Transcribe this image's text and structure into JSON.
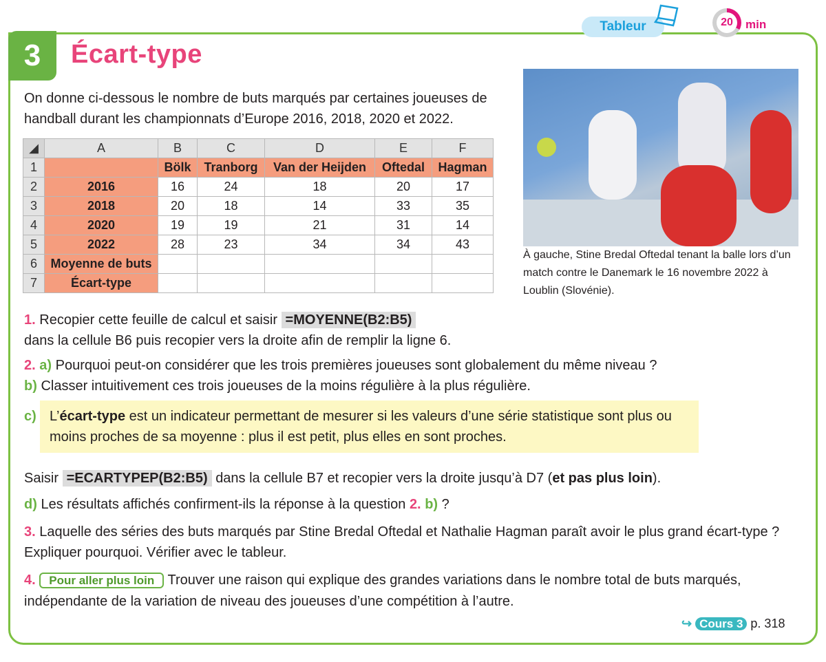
{
  "header": {
    "number": "3",
    "title": "Écart-type",
    "tag": "Tableur",
    "time": "20",
    "time_unit": "min"
  },
  "intro": "On donne ci-dessous le nombre de buts marqués par certaines joueuses de handball durant les championnats d’Europe 2016, 2018, 2020 et 2022.",
  "table": {
    "columns": [
      "A",
      "B",
      "C",
      "D",
      "E",
      "F"
    ],
    "rows": [
      [
        "1",
        "",
        "Bölk",
        "Tranborg",
        "Van der Heijden",
        "Oftedal",
        "Hagman"
      ],
      [
        "2",
        "2016",
        "16",
        "24",
        "18",
        "20",
        "17"
      ],
      [
        "3",
        "2018",
        "20",
        "18",
        "14",
        "33",
        "35"
      ],
      [
        "4",
        "2020",
        "19",
        "19",
        "21",
        "31",
        "14"
      ],
      [
        "5",
        "2022",
        "28",
        "23",
        "34",
        "34",
        "43"
      ],
      [
        "6",
        "Moyenne de buts",
        "",
        "",
        "",
        "",
        ""
      ],
      [
        "7",
        "Écart-type",
        "",
        "",
        "",
        "",
        ""
      ]
    ]
  },
  "photo_caption": "À gauche, Stine Bredal Oftedal tenant la balle lors d’un match contre le Danemark le 16 novembre 2022 à Loublin (Slovénie).",
  "q1": {
    "n": "1.",
    "a": "Recopier cette feuille de calcul et saisir",
    "code": "=MOYENNE(B2:B5)",
    "b": "dans la cellule B6 puis recopier vers la droite afin de remplir la ligne 6."
  },
  "q2": {
    "n": "2.",
    "a_label": "a)",
    "a": "Pourquoi peut-on considérer que les trois premières joueuses sont globalement du même niveau ?",
    "b_label": "b)",
    "b": "Classer intuitivement ces trois joueuses de la moins régulière à la plus régulière.",
    "c_label": "c)",
    "c1": "L’",
    "c_bold": "écart-type",
    "c2": " est un indicateur permettant de mesurer si les valeurs d’une série statistique sont plus ou moins proches de sa moyenne : plus il est petit, plus elles en sont proches.",
    "s1": "Saisir",
    "code": "=ECARTYPEP(B2:B5)",
    "s2": "dans la cellule B7 et recopier vers la droite jusqu’à D7 (",
    "s_bold": "et pas plus loin",
    "s3": ").",
    "d_label": "d)",
    "d": "Les résultats affichés confirment-ils la réponse à la question",
    "d_ref1": "2.",
    "d_ref2": "b)",
    "d_end": " ?"
  },
  "q3": {
    "n": "3.",
    "text": "Laquelle des séries des buts marqués par Stine Bredal Oftedal et Nathalie Hagman paraît avoir le plus grand écart-type ? Expliquer pourquoi. Vérifier avec le tableur."
  },
  "q4": {
    "n": "4.",
    "button": "Pour aller plus loin",
    "text": "Trouver une raison qui explique des grandes variations dans le nombre total de buts marqués, indépendante de la variation de niveau des joueuses d’une compétition à l’autre."
  },
  "footer": {
    "arrow": "↪",
    "link": "Cours 3",
    "page": "p. 318"
  }
}
